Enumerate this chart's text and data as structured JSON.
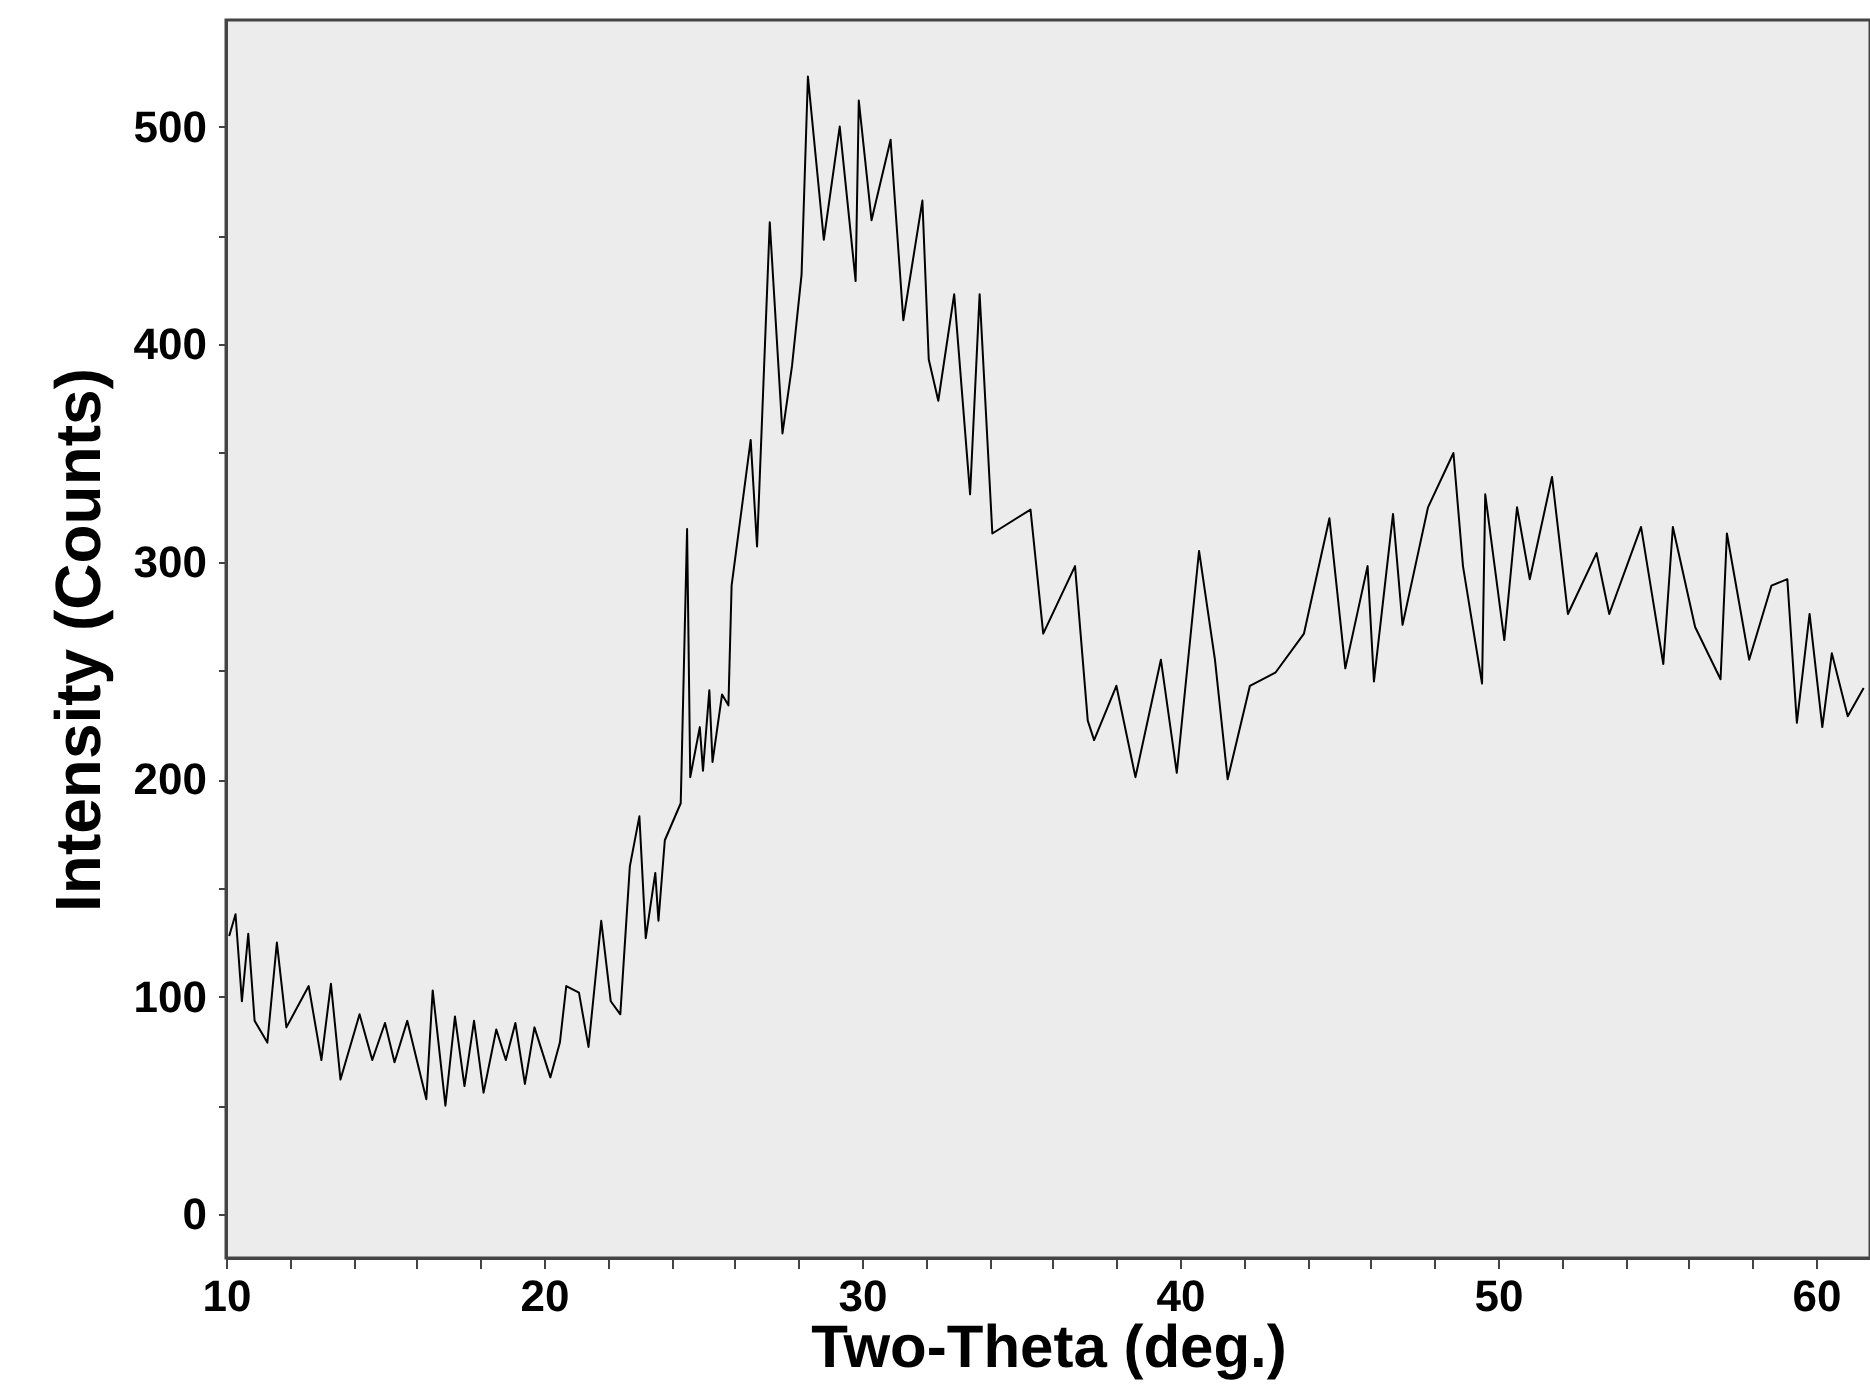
{
  "chart_data": {
    "type": "line",
    "xlabel": "Two-Theta (deg.)",
    "ylabel": "Intensity (Counts)",
    "xlim": [
      10,
      61.7
    ],
    "ylim": [
      -20,
      549
    ],
    "xticks": [
      10,
      {
        "value": 12,
        "label": null
      },
      {
        "value": 14,
        "label": null
      },
      {
        "value": 16,
        "label": null
      },
      {
        "value": 18,
        "label": null
      },
      20,
      {
        "value": 22,
        "label": null
      },
      {
        "value": 24,
        "label": null
      },
      {
        "value": 26,
        "label": null
      },
      {
        "value": 28,
        "label": null
      },
      30,
      {
        "value": 32,
        "label": null
      },
      {
        "value": 34,
        "label": null
      },
      {
        "value": 36,
        "label": null
      },
      {
        "value": 38,
        "label": null
      },
      40,
      {
        "value": 42,
        "label": null
      },
      {
        "value": 44,
        "label": null
      },
      {
        "value": 46,
        "label": null
      },
      {
        "value": 48,
        "label": null
      },
      50,
      {
        "value": 52,
        "label": null
      },
      {
        "value": 54,
        "label": null
      },
      {
        "value": 56,
        "label": null
      },
      {
        "value": 58,
        "label": null
      },
      60
    ],
    "yticks": [
      0,
      {
        "value": 50,
        "label": null
      },
      100,
      {
        "value": 150,
        "label": null
      },
      200,
      {
        "value": 250,
        "label": null
      },
      300,
      {
        "value": 350,
        "label": null
      },
      400,
      {
        "value": 450,
        "label": null
      },
      500
    ],
    "grid": false,
    "line_style": "solid",
    "series": [
      {
        "color": "#000000",
        "x": [
          10.1,
          10.3,
          10.5,
          10.7,
          10.9,
          11.3,
          11.6,
          11.9,
          12.6,
          13.0,
          13.3,
          13.6,
          14.2,
          14.6,
          15.0,
          15.3,
          15.7,
          16.1,
          16.3,
          16.5,
          16.9,
          17.2,
          17.5,
          17.8,
          18.1,
          18.5,
          18.8,
          19.1,
          19.4,
          19.7,
          20.2,
          20.5,
          20.7,
          21.1,
          21.4,
          21.8,
          22.1,
          22.4,
          22.7,
          23.0,
          23.2,
          23.5,
          23.6,
          23.8,
          24.3,
          24.5,
          24.6,
          24.9,
          25.0,
          25.2,
          25.3,
          25.6,
          25.8,
          25.9,
          26.5,
          26.7,
          27.1,
          27.5,
          27.8,
          28.1,
          28.3,
          28.8,
          29.3,
          29.8,
          29.9,
          30.3,
          30.9,
          31.3,
          31.9,
          32.1,
          32.4,
          32.9,
          33.4,
          33.7,
          34.1,
          35.3,
          35.7,
          36.7,
          37.1,
          37.3,
          38.0,
          38.6,
          39.4,
          39.9,
          40.6,
          41.1,
          41.5,
          42.2,
          43.0,
          43.9,
          44.7,
          45.2,
          45.9,
          46.1,
          46.7,
          47.0,
          47.8,
          48.6,
          48.9,
          49.5,
          49.6,
          50.2,
          50.6,
          51.0,
          51.7,
          52.2,
          53.1,
          53.5,
          54.5,
          55.2,
          55.5,
          56.2,
          57.0,
          57.2,
          57.9,
          58.6,
          59.1,
          59.4,
          59.8,
          60.2,
          60.5,
          61.0,
          61.5
        ],
        "values": [
          128,
          138,
          98,
          129,
          89,
          79,
          125,
          86,
          105,
          71,
          106,
          62,
          92,
          71,
          88,
          70,
          89,
          65,
          53,
          103,
          50,
          91,
          59,
          89,
          56,
          85,
          71,
          88,
          60,
          86,
          63,
          79,
          105,
          102,
          77,
          135,
          98,
          92,
          160,
          183,
          127,
          157,
          135,
          172,
          189,
          315,
          201,
          224,
          204,
          241,
          208,
          239,
          234,
          289,
          356,
          307,
          456,
          359,
          390,
          432,
          523,
          448,
          500,
          429,
          512,
          457,
          494,
          411,
          466,
          393,
          374,
          423,
          331,
          423,
          313,
          324,
          267,
          298,
          227,
          218,
          243,
          201,
          255,
          203,
          305,
          255,
          200,
          243,
          249,
          267,
          320,
          251,
          298,
          245,
          322,
          271,
          325,
          350,
          298,
          244,
          331,
          264,
          325,
          292,
          339,
          276,
          304,
          276,
          316,
          253,
          316,
          270,
          246,
          313,
          255,
          289,
          292,
          226,
          276,
          224,
          258,
          229,
          242
        ]
      }
    ]
  }
}
